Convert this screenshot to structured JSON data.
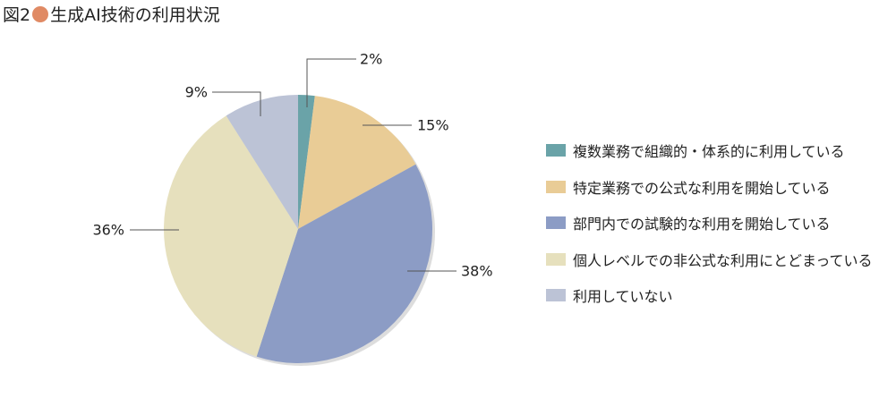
{
  "title": {
    "prefix": "図2",
    "text": "生成AI技術の利用状況",
    "dot_color": "#e08a64"
  },
  "chart_data": {
    "type": "pie",
    "start": "top",
    "direction": "clockwise",
    "categories": [
      "複数業務で組織的・体系的に利用している",
      "特定業務での公式な利用を開始している",
      "部門内での試験的な利用を開始している",
      "個人レベルでの非公式な利用にとどまっている",
      "利用していない"
    ],
    "values": [
      2,
      15,
      38,
      36,
      9
    ],
    "labels": [
      "2%",
      "15%",
      "38%",
      "36%",
      "9%"
    ],
    "colors": [
      "#6aa3a8",
      "#e9cc96",
      "#8c9cc5",
      "#e6e0bd",
      "#bcc3d6"
    ],
    "legend_position": "right"
  }
}
